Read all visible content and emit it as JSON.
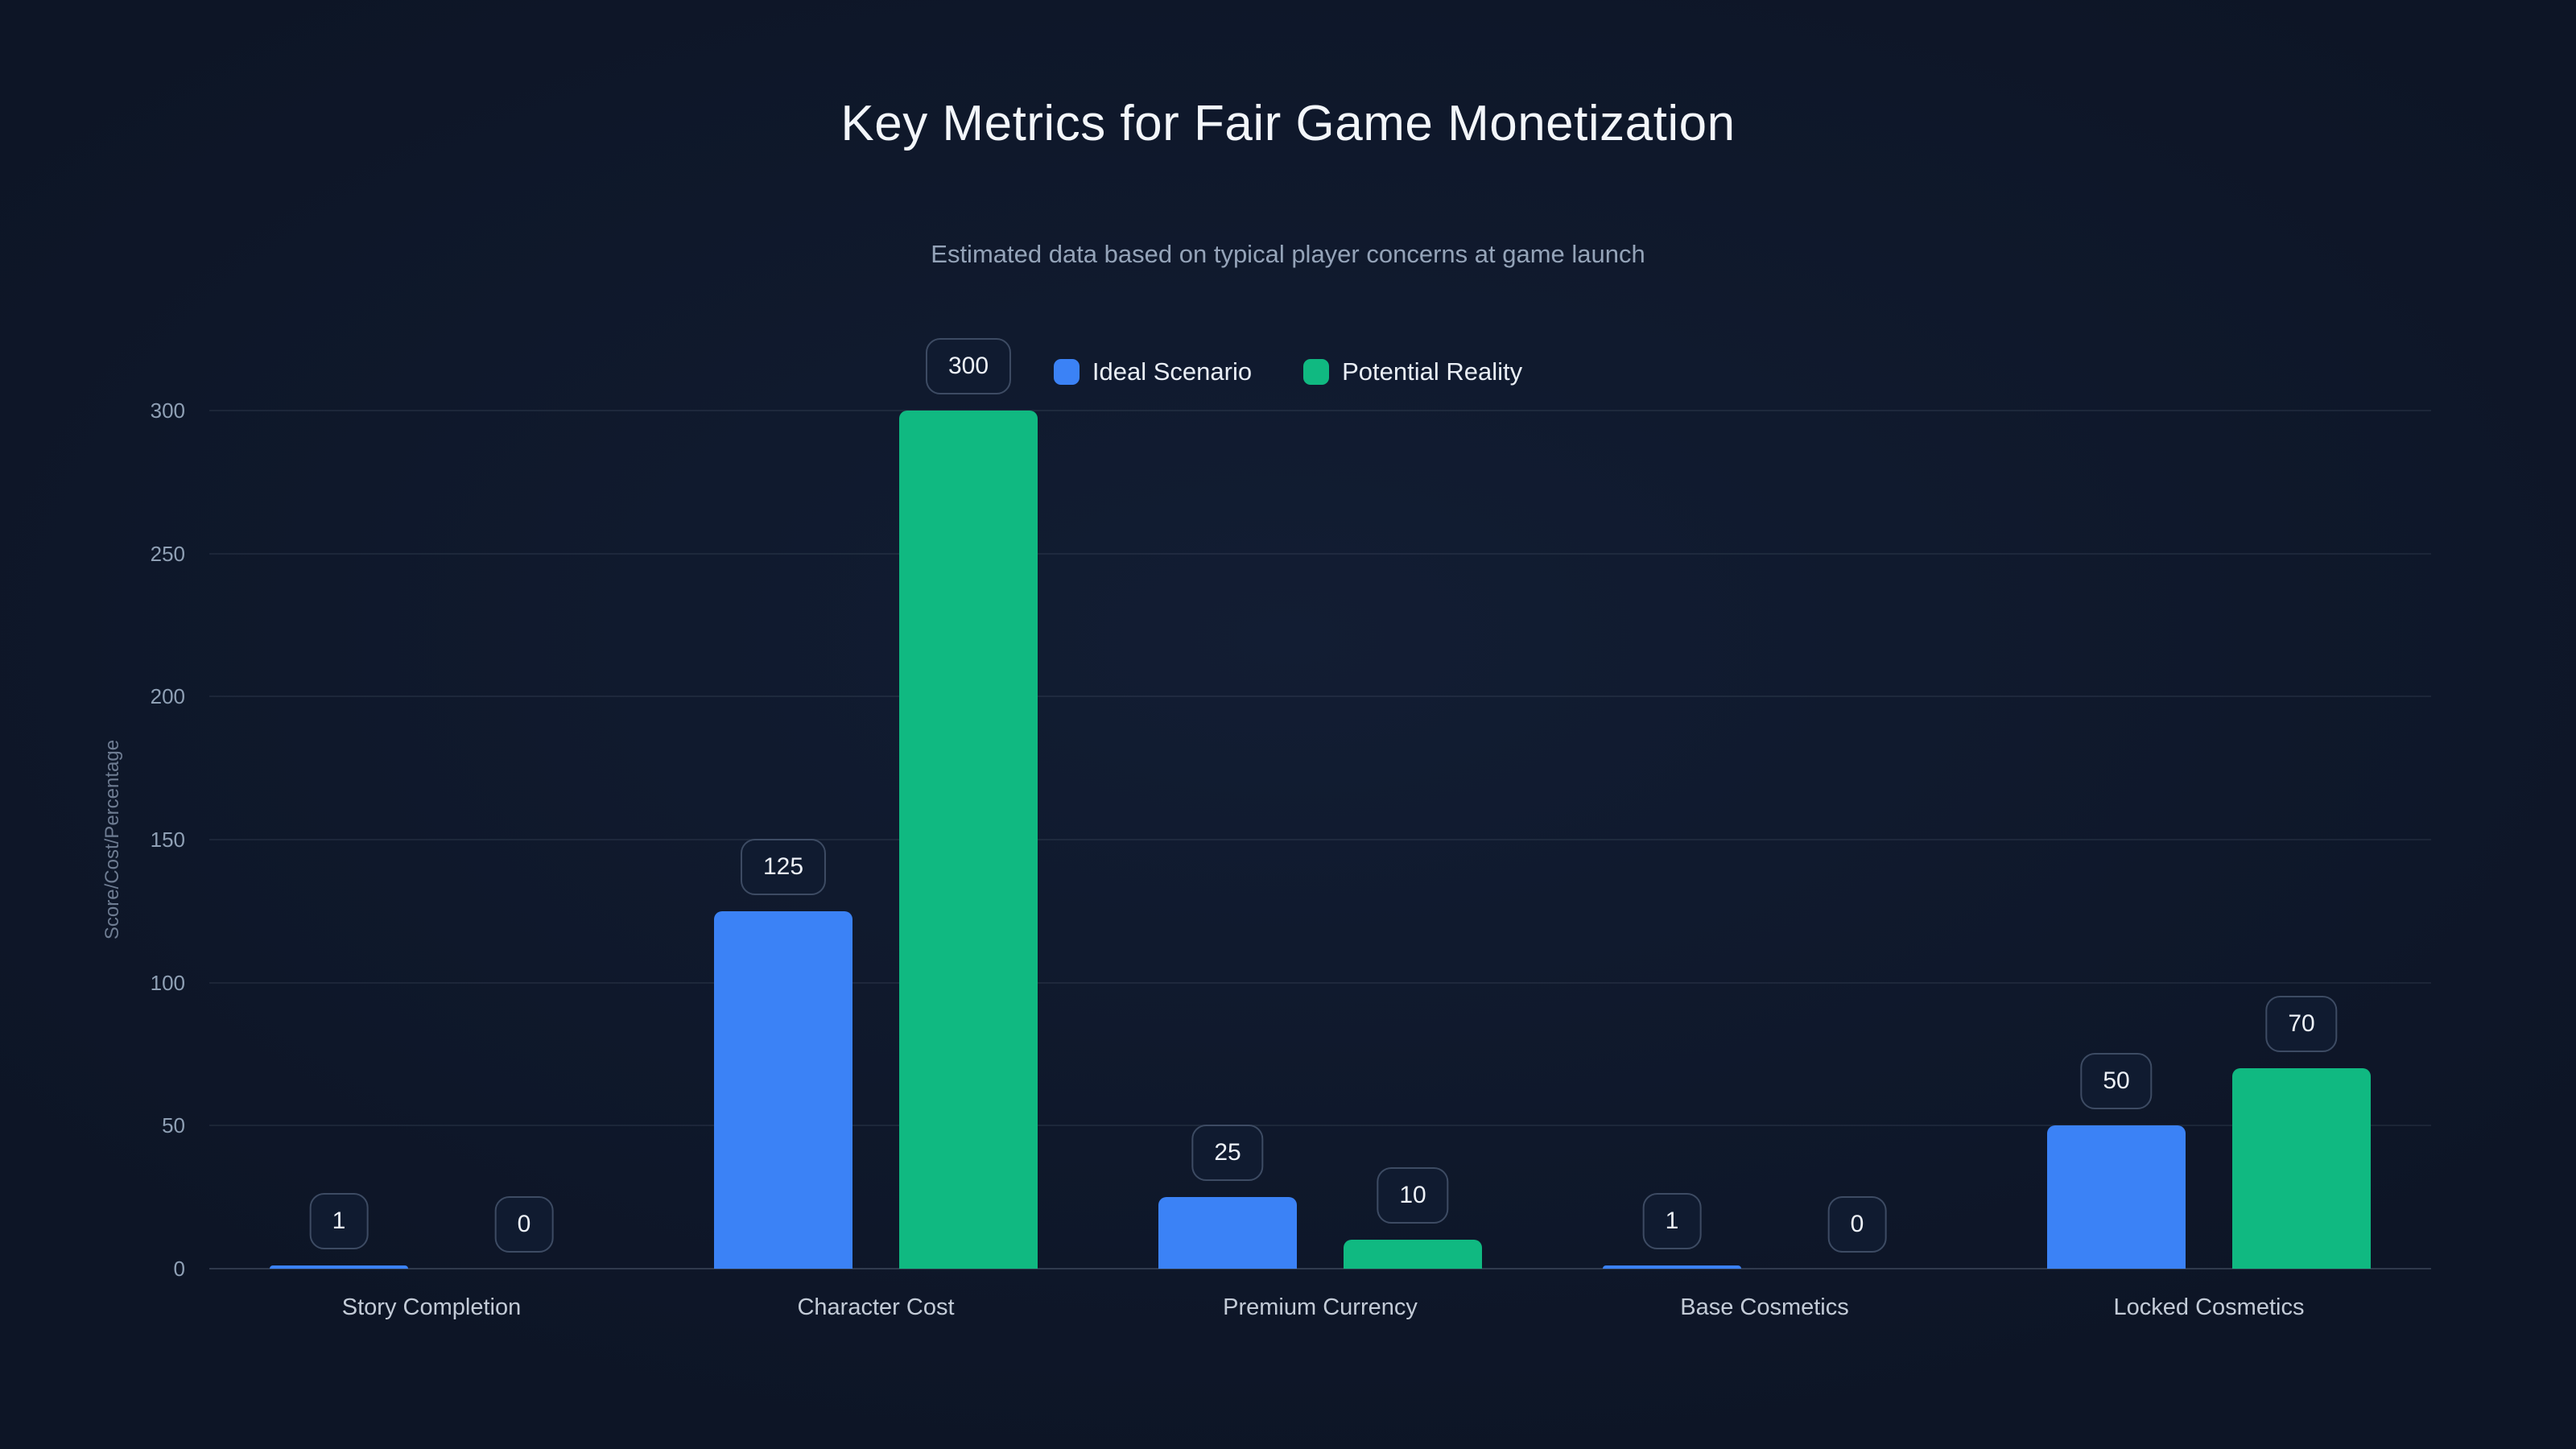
{
  "page": {
    "background_color": "#0d1526"
  },
  "chart_data": {
    "type": "bar",
    "title": "Key Metrics for Fair Game Monetization",
    "subtitle": "Estimated data based on typical player concerns at game launch",
    "categories": [
      "Story Completion",
      "Character Cost",
      "Premium Currency",
      "Base Cosmetics",
      "Locked Cosmetics"
    ],
    "series": [
      {
        "name": "Ideal Scenario",
        "color": "#3b82f6",
        "values": [
          1,
          125,
          25,
          1,
          50
        ]
      },
      {
        "name": "Potential Reality",
        "color": "#10b981",
        "values": [
          0,
          300,
          10,
          0,
          70
        ]
      }
    ],
    "xlabel": "",
    "ylabel": "Score/Cost/Percentage",
    "ylim": [
      0,
      300
    ],
    "yticks": [
      0,
      50,
      100,
      150,
      200,
      250,
      300
    ],
    "grid": true,
    "legend_position": "top-center",
    "value_labels": "pill-above-bar"
  }
}
